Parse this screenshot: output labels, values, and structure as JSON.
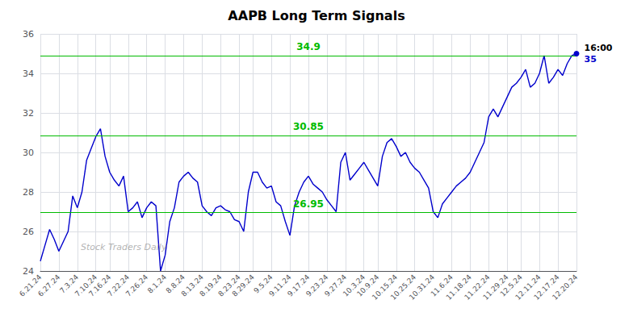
{
  "chart_data": {
    "type": "line",
    "title": "AAPB Long Term Signals",
    "color": "#0000cc",
    "grid": true,
    "ylim": [
      24,
      36
    ],
    "yticks": [
      24,
      26,
      28,
      30,
      32,
      34,
      36
    ],
    "categories": [
      "6.21.24",
      null,
      null,
      null,
      "6.27.24",
      null,
      null,
      null,
      "7.3.24",
      null,
      null,
      null,
      "7.10.24",
      null,
      null,
      "7.16.24",
      null,
      null,
      null,
      "7.22.24",
      null,
      null,
      null,
      "7.26.24",
      null,
      null,
      null,
      "8.1.24",
      null,
      null,
      null,
      "8.8.24",
      null,
      null,
      null,
      "8.13.24",
      null,
      null,
      null,
      "8.19.24",
      null,
      null,
      null,
      "8.23.24",
      null,
      null,
      "8.29.24",
      null,
      null,
      null,
      "9.5.24",
      null,
      null,
      null,
      "9.11.24",
      null,
      null,
      null,
      "9.17.24",
      null,
      null,
      null,
      "9.23.24",
      null,
      null,
      null,
      "9.27.24",
      null,
      null,
      null,
      "10.3.24",
      null,
      null,
      "10.9.24",
      null,
      null,
      null,
      "10.15.24",
      null,
      null,
      null,
      "10.25.24",
      null,
      null,
      null,
      "10.31.24",
      null,
      null,
      null,
      "11.6.24",
      null,
      null,
      null,
      "11.18.24",
      null,
      null,
      null,
      "11.22.24",
      null,
      null,
      null,
      "11.29.24",
      null,
      null,
      "12.5.24",
      null,
      null,
      null,
      "12.11.24",
      null,
      null,
      null,
      "12.17.24",
      null,
      null,
      null,
      "12.20.24"
    ],
    "values": [
      24.5,
      25.3,
      26.1,
      25.6,
      25.0,
      25.5,
      26.0,
      27.8,
      27.2,
      28.0,
      29.6,
      30.2,
      30.8,
      31.2,
      29.8,
      29.0,
      28.6,
      28.3,
      28.8,
      27.0,
      27.2,
      27.5,
      26.7,
      27.2,
      27.5,
      27.3,
      24.0,
      24.8,
      26.5,
      27.2,
      28.5,
      28.8,
      29.0,
      28.7,
      28.5,
      27.3,
      27.0,
      26.8,
      27.2,
      27.3,
      27.1,
      27.0,
      26.6,
      26.5,
      26.0,
      28.0,
      29.0,
      29.0,
      28.5,
      28.2,
      28.3,
      27.5,
      27.3,
      26.5,
      25.8,
      27.3,
      28.0,
      28.5,
      28.8,
      28.4,
      28.2,
      28.0,
      27.6,
      27.3,
      27.0,
      29.5,
      30.0,
      28.6,
      28.9,
      29.2,
      29.5,
      29.1,
      28.7,
      28.3,
      29.8,
      30.5,
      30.7,
      30.3,
      29.8,
      30.0,
      29.5,
      29.2,
      29.0,
      28.6,
      28.2,
      27.0,
      26.7,
      27.4,
      27.7,
      28.0,
      28.3,
      28.5,
      28.7,
      29.0,
      29.5,
      30.0,
      30.5,
      31.8,
      32.2,
      31.8,
      32.3,
      32.8,
      33.3,
      33.5,
      33.8,
      34.2,
      33.3,
      33.5,
      34.0,
      34.9,
      33.5,
      33.8,
      34.2,
      33.9,
      34.5,
      34.9,
      35.0
    ],
    "hlines": [
      {
        "value": 26.95,
        "label": "26.95",
        "color": "#00bb00"
      },
      {
        "value": 30.85,
        "label": "30.85",
        "color": "#00bb00"
      },
      {
        "value": 34.9,
        "label": "34.9",
        "color": "#00bb00"
      }
    ],
    "annotations": [
      {
        "text": "16:00",
        "x": "12.20.24",
        "y": 35.0
      },
      {
        "text": "35",
        "x": "12.20.24",
        "y": 35.0,
        "color": "#0000cc"
      }
    ],
    "watermark": "Stock Traders Daily"
  }
}
